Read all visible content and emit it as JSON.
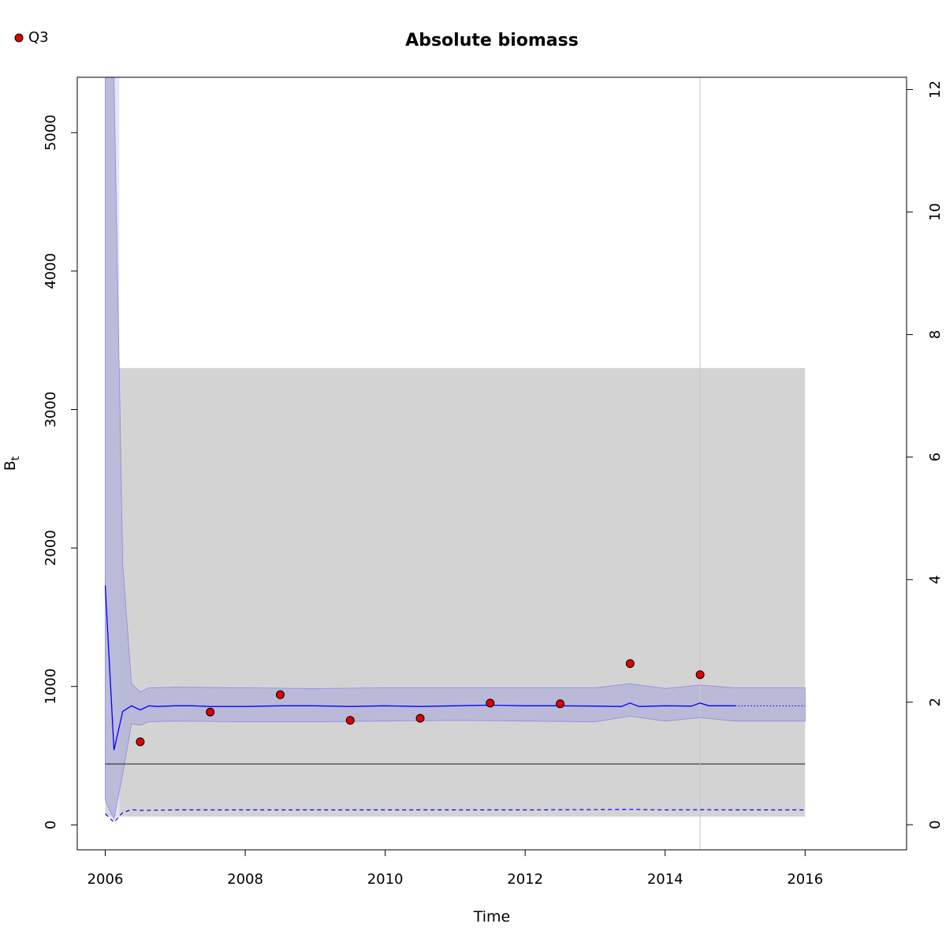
{
  "chart_data": {
    "type": "line",
    "title": "Absolute biomass",
    "xlabel": "Time",
    "ylabel": "B",
    "ylabel_subscript": "t",
    "xlim": [
      2005.6,
      2017.45
    ],
    "ylim": [
      -180,
      5400
    ],
    "y2lim": [
      -0.41,
      12.2
    ],
    "x_ticks": [
      2006,
      2008,
      2010,
      2012,
      2014,
      2016
    ],
    "y_ticks": [
      0,
      1000,
      2000,
      3000,
      4000,
      5000
    ],
    "y2_ticks": [
      0,
      2,
      4,
      6,
      8,
      10,
      12
    ],
    "legend": {
      "position": "top-left",
      "entries": [
        {
          "label": "Q3",
          "color": "#e00000"
        }
      ]
    },
    "colors": {
      "line": "#0000ff",
      "ci_band": "#b8b8d8",
      "ci_edge": "#8a8ae6",
      "region": "#d3d3d3",
      "early_band": "#e4e4fa",
      "vline": "#c8c8c8"
    },
    "background_region": {
      "x": [
        2006.0,
        2016.0
      ],
      "y": [
        60,
        3300
      ]
    },
    "reference_line": {
      "y": 440,
      "x": [
        2006.0,
        2016.0
      ]
    },
    "vertical_line": {
      "x": 2014.5
    },
    "early_band": {
      "x": [
        2006.0,
        2006.2
      ],
      "upper": 5400
    },
    "series": [
      {
        "name": "B estimate",
        "x": [
          2006.0,
          2006.125,
          2006.25,
          2006.375,
          2006.5,
          2006.625,
          2006.75,
          2007.0,
          2007.25,
          2007.5,
          2008.0,
          2008.5,
          2009.0,
          2009.5,
          2010.0,
          2010.5,
          2011.0,
          2011.5,
          2012.0,
          2012.5,
          2013.0,
          2013.375,
          2013.5,
          2013.625,
          2014.0,
          2014.375,
          2014.5,
          2014.625,
          2015.0
        ],
        "values": [
          1730,
          540,
          820,
          860,
          830,
          860,
          855,
          860,
          860,
          855,
          855,
          860,
          860,
          855,
          860,
          855,
          860,
          865,
          860,
          860,
          858,
          855,
          880,
          855,
          860,
          858,
          880,
          860,
          860
        ]
      },
      {
        "name": "B prediction",
        "x": [
          2015.0,
          2016.0
        ],
        "values": [
          860,
          860
        ]
      },
      {
        "name": "CI upper",
        "x": [
          2006.0,
          2006.125,
          2006.25,
          2006.375,
          2006.5,
          2006.625,
          2007.0,
          2008.0,
          2009.0,
          2010.0,
          2011.0,
          2012.0,
          2013.0,
          2013.5,
          2014.0,
          2014.5,
          2015.0,
          2016.0
        ],
        "values": [
          5400,
          5400,
          1880,
          1020,
          960,
          990,
          995,
          990,
          985,
          990,
          990,
          990,
          990,
          1020,
          985,
          1010,
          990,
          990
        ]
      },
      {
        "name": "CI lower",
        "x": [
          2006.0,
          2006.125,
          2006.25,
          2006.375,
          2006.5,
          2006.625,
          2007.0,
          2008.0,
          2009.0,
          2010.0,
          2011.0,
          2012.0,
          2013.0,
          2013.5,
          2014.0,
          2014.5,
          2015.0,
          2016.0
        ],
        "values": [
          180,
          40,
          370,
          730,
          720,
          745,
          750,
          745,
          745,
          750,
          755,
          750,
          745,
          785,
          750,
          775,
          750,
          750
        ]
      },
      {
        "name": "dashed lower",
        "x": [
          2006.0,
          2006.125,
          2006.25,
          2006.375,
          2006.5,
          2007.0,
          2008.0,
          2010.0,
          2012.0,
          2013.5,
          2014.0,
          2014.5,
          2015.0,
          2016.0
        ],
        "values": [
          80,
          20,
          90,
          110,
          105,
          108,
          108,
          108,
          108,
          112,
          108,
          110,
          108,
          108
        ]
      }
    ],
    "points": {
      "name": "Q3",
      "x": [
        2006.5,
        2007.5,
        2008.5,
        2009.5,
        2010.5,
        2011.5,
        2012.5,
        2013.5,
        2014.5
      ],
      "values": [
        600,
        815,
        940,
        755,
        770,
        880,
        875,
        1165,
        1085
      ]
    }
  }
}
